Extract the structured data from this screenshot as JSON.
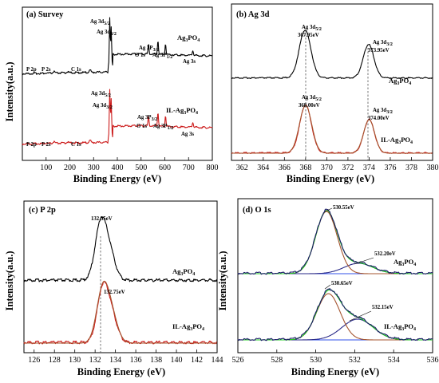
{
  "colors": {
    "black": "#000000",
    "red": "#cc1b1b",
    "green": "#22cc22",
    "brown": "#a4552f",
    "darkblue": "#1a1a66",
    "navy": "#2a2a88",
    "blue": "#3050e8"
  },
  "chart_data": [
    {
      "type": "line",
      "title": "(a) Survey",
      "xlabel": "Binding Energy (eV)",
      "ylabel": "Intensity(a.u.)",
      "xlim": [
        0,
        800
      ],
      "xticks": [
        "100",
        "200",
        "300",
        "400",
        "500",
        "600",
        "700",
        "800"
      ],
      "series": [
        {
          "name": "Ag3PO4",
          "color": "#000000",
          "x": [
            0,
            80,
            133,
            150,
            190,
            240,
            285,
            300,
            330,
            360,
            368,
            371,
            374,
            378,
            385,
            420,
            480,
            520,
            530,
            540,
            560,
            571,
            577,
            590,
            603,
            610,
            650,
            700,
            718,
            730,
            800
          ],
          "y": [
            1.05,
            1.06,
            1.1,
            1.08,
            1.12,
            1.12,
            1.15,
            1.14,
            1.18,
            1.3,
            3.3,
            1.8,
            3.0,
            2.4,
            2.05,
            2.0,
            1.95,
            1.9,
            2.2,
            1.9,
            1.9,
            2.45,
            2.2,
            2.15,
            2.35,
            2.05,
            1.95,
            1.85,
            1.95,
            1.8,
            1.75
          ]
        },
        {
          "name": "IL-Ag3PO4",
          "color": "#cc1b1b",
          "x": [
            0,
            80,
            133,
            150,
            190,
            240,
            285,
            300,
            330,
            360,
            368,
            371,
            374,
            378,
            385,
            420,
            480,
            520,
            530,
            540,
            560,
            571,
            577,
            590,
            603,
            610,
            650,
            700,
            718,
            730,
            800
          ],
          "y": [
            0.05,
            0.06,
            0.1,
            0.08,
            0.12,
            0.12,
            0.15,
            0.14,
            0.18,
            0.3,
            2.2,
            0.8,
            2.0,
            1.4,
            1.05,
            1.0,
            0.95,
            0.9,
            1.2,
            0.95,
            0.95,
            1.35,
            1.15,
            1.1,
            1.3,
            1.02,
            0.95,
            0.85,
            0.93,
            0.8,
            0.75
          ]
        }
      ],
      "annotations": [
        {
          "text": "Ag 3d",
          "sub": "5/2"
        },
        {
          "text": "Ag 3d",
          "sub": "3/2"
        },
        {
          "text": "Ag",
          "sub": "3",
          "sub2": "PO",
          "sub3": "4",
          "label": "Ag3PO4"
        },
        {
          "text": "O 1s"
        },
        {
          "text": "Ag 3P",
          "sub": "3/2"
        },
        {
          "text": "Ag 3P",
          "sub": "1/2"
        },
        {
          "text": "Ag 3s"
        },
        {
          "text": "P 2p"
        },
        {
          "text": "P 2s"
        },
        {
          "text": "C 1s"
        },
        {
          "text": "IL-Ag3PO4"
        }
      ]
    },
    {
      "type": "line",
      "title": "(b) Ag 3d",
      "xlabel": "Binding Energy (eV)",
      "ylabel": "",
      "xlim": [
        361,
        380
      ],
      "xticks": [
        "362",
        "364",
        "366",
        "368",
        "370",
        "372",
        "374",
        "376",
        "378",
        "380"
      ],
      "series": [
        {
          "name": "Ag3PO4",
          "color": "#000000",
          "peaks": [
            367.95,
            373.95
          ],
          "baseline_peaks": [
            "367.95eV",
            "373.95eV"
          ]
        },
        {
          "name": "IL-Ag3PO4",
          "color": "#cc1b1b",
          "peaks": [
            368.0,
            374.0
          ],
          "baseline_peaks": [
            "368.00eV",
            "374.00eV"
          ]
        }
      ]
    },
    {
      "type": "line",
      "title": "(c) P 2p",
      "xlabel": "Binding Energy (eV)",
      "ylabel": "Intensity(a.u.)",
      "xlim": [
        125,
        144
      ],
      "xticks": [
        "126",
        "128",
        "130",
        "132",
        "134",
        "136",
        "138",
        "140",
        "142",
        "144"
      ],
      "series": [
        {
          "name": "Ag3PO4",
          "color": "#000000",
          "peaks": [
            132.55
          ],
          "baseline_peaks": [
            "132.55eV"
          ]
        },
        {
          "name": "IL-Ag3PO4",
          "color": "#cc1b1b",
          "peaks": [
            132.75
          ],
          "baseline_peaks": [
            "132.75eV"
          ]
        }
      ]
    },
    {
      "type": "line",
      "title": "(d) O 1s",
      "xlabel": "Binding Energy (eV)",
      "ylabel": "Intensity(a.u.)",
      "xlim": [
        526,
        536
      ],
      "xticks": [
        "526",
        "528",
        "530",
        "532",
        "534",
        "536"
      ],
      "series": [
        {
          "name": "Ag3PO4",
          "peaks": [
            530.55,
            532.2
          ],
          "baseline_peaks": [
            "530.55eV",
            "532.20eV"
          ]
        },
        {
          "name": "IL-Ag3PO4",
          "peaks": [
            530.65,
            532.15
          ],
          "baseline_peaks": [
            "530.65eV",
            "532.15eV"
          ]
        }
      ]
    }
  ],
  "labels": {
    "a_title": "(a) Survey",
    "b_title": "(b) Ag 3d",
    "c_title": "(c) P 2p",
    "d_title": "(d) O 1s",
    "xlabel": "Binding Energy (eV)",
    "ylabel": "Intensity(a.u.)",
    "ag3po4": "Ag3PO4",
    "il_ag3po4": "IL-Ag3PO4",
    "b_p1_top": "367.95eV",
    "b_p2_top": "373.95eV",
    "b_p1_bot": "368.00eV",
    "b_p2_bot": "374.00eV",
    "c_top": "132.55eV",
    "c_bot": "132.75eV",
    "d_top1": "530.55eV",
    "d_top2": "532.20eV",
    "d_bot1": "530.65eV",
    "d_bot2": "532.15eV",
    "ag3d": "Ag 3d",
    "s52": "5/2",
    "s32": "3/2",
    "o1s": "O 1s",
    "ag3p": "Ag 3P",
    "s12": "1/2",
    "ag3s": "Ag 3s",
    "p2p": "P 2p",
    "p2s": "P 2s",
    "c1s": "C 1s"
  }
}
